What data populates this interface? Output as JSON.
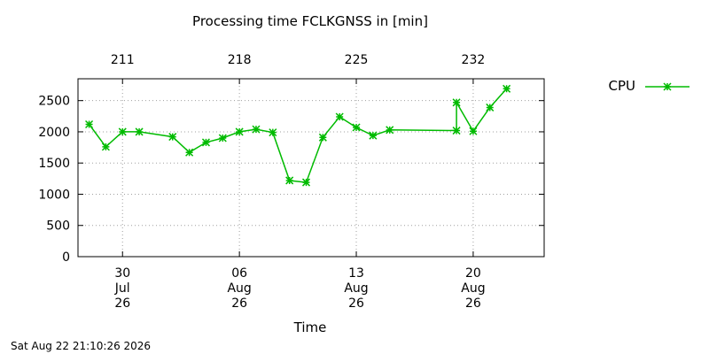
{
  "chart_data": {
    "type": "line",
    "title": "Processing time FCLKGNSS in [min]",
    "xlabel": "Time",
    "ylabel": "",
    "ylim": [
      0,
      2850
    ],
    "xlim": [
      "2026-07-27T08:00",
      "2026-08-24T06:00"
    ],
    "yticks": [
      0,
      500,
      1000,
      1500,
      2000,
      2500
    ],
    "x_ticks_bottom": [
      {
        "date": "2026-07-30",
        "lines": [
          "30",
          "Jul",
          "26"
        ]
      },
      {
        "date": "2026-08-06",
        "lines": [
          "06",
          "Aug",
          "26"
        ]
      },
      {
        "date": "2026-08-13",
        "lines": [
          "13",
          "Aug",
          "26"
        ]
      },
      {
        "date": "2026-08-20",
        "lines": [
          "20",
          "Aug",
          "26"
        ]
      }
    ],
    "x_ticks_top": [
      {
        "date": "2026-07-30",
        "label": "211"
      },
      {
        "date": "2026-08-06",
        "label": "218"
      },
      {
        "date": "2026-08-13",
        "label": "225"
      },
      {
        "date": "2026-08-20",
        "label": "232"
      }
    ],
    "grid": true,
    "legend_position": "top-right",
    "series": [
      {
        "name": "CPU",
        "color": "#00bb00",
        "marker": "x-star",
        "points": [
          {
            "x": "2026-07-28T00:00",
            "y": 2120
          },
          {
            "x": "2026-07-29T00:00",
            "y": 1760
          },
          {
            "x": "2026-07-30T00:00",
            "y": 2000
          },
          {
            "x": "2026-07-31T00:00",
            "y": 2000
          },
          {
            "x": "2026-08-02T00:00",
            "y": 1920
          },
          {
            "x": "2026-08-03T00:00",
            "y": 1670
          },
          {
            "x": "2026-08-04T00:00",
            "y": 1830
          },
          {
            "x": "2026-08-05T00:00",
            "y": 1900
          },
          {
            "x": "2026-08-06T00:00",
            "y": 2000
          },
          {
            "x": "2026-08-07T00:00",
            "y": 2040
          },
          {
            "x": "2026-08-08T00:00",
            "y": 1990
          },
          {
            "x": "2026-08-09T00:00",
            "y": 1220
          },
          {
            "x": "2026-08-10T00:00",
            "y": 1190
          },
          {
            "x": "2026-08-11T00:00",
            "y": 1910
          },
          {
            "x": "2026-08-12T00:00",
            "y": 2240
          },
          {
            "x": "2026-08-13T00:00",
            "y": 2070
          },
          {
            "x": "2026-08-14T00:00",
            "y": 1940
          },
          {
            "x": "2026-08-15T00:00",
            "y": 2030
          },
          {
            "x": "2026-08-19T00:00",
            "y": 2020
          },
          {
            "x": "2026-08-19T00:00",
            "y": 2470
          },
          {
            "x": "2026-08-20T00:00",
            "y": 2010
          },
          {
            "x": "2026-08-21T00:00",
            "y": 2390
          },
          {
            "x": "2026-08-22T00:00",
            "y": 2690
          }
        ]
      }
    ]
  },
  "footer": {
    "timestamp": "Sat Aug 22 21:10:26 2026"
  }
}
